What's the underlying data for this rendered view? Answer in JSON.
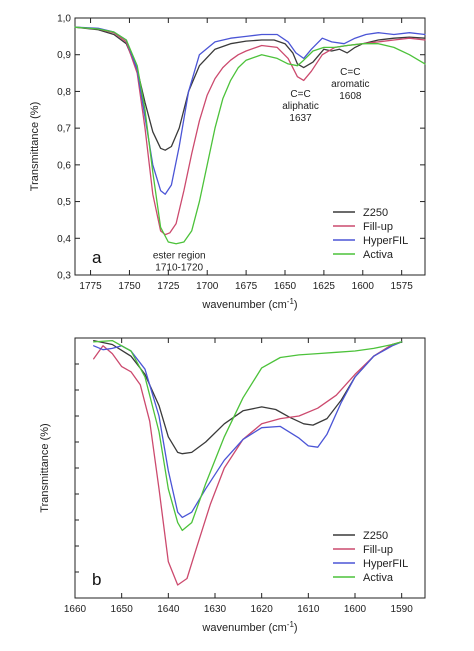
{
  "chart_data": [
    {
      "panel_label": "a",
      "type": "line",
      "xlabel_main": "wavenumber (cm",
      "xlabel_sup": "-1",
      "xlabel_end": ")",
      "ylabel": "Transmittance (%)",
      "xlim": [
        1785,
        1560
      ],
      "ylim": [
        0.3,
        1.0
      ],
      "x_ticks": [
        1775,
        1750,
        1725,
        1700,
        1675,
        1650,
        1625,
        1600,
        1575
      ],
      "y_ticks": [
        0.3,
        0.4,
        0.5,
        0.6,
        0.7,
        0.8,
        0.9,
        1.0
      ],
      "y_tick_labels": [
        "0,3",
        "0,4",
        "0,5",
        "0,6",
        "0,7",
        "0,8",
        "0,9",
        "1,0"
      ],
      "legend_position": "bottom-right",
      "annotations": [
        {
          "lines": [
            "ester region",
            "1710-1720"
          ],
          "x": 1718,
          "y": 0.345
        },
        {
          "lines": [
            "C=C",
            "aliphatic",
            "1637"
          ],
          "x": 1640,
          "y": 0.785
        },
        {
          "lines": [
            "C=C",
            "aromatic",
            "1608"
          ],
          "x": 1608,
          "y": 0.845
        }
      ],
      "series": [
        {
          "name": "Z250",
          "color": "#3a3a3a",
          "x": [
            1785,
            1770,
            1760,
            1752,
            1745,
            1740,
            1735,
            1730,
            1727,
            1723,
            1718,
            1712,
            1705,
            1695,
            1685,
            1675,
            1665,
            1657,
            1650,
            1645,
            1642,
            1638,
            1632,
            1625,
            1620,
            1615,
            1610,
            1605,
            1600,
            1590,
            1580,
            1570,
            1560
          ],
          "y": [
            0.975,
            0.968,
            0.955,
            0.93,
            0.86,
            0.77,
            0.69,
            0.645,
            0.64,
            0.65,
            0.7,
            0.8,
            0.87,
            0.915,
            0.93,
            0.937,
            0.94,
            0.94,
            0.93,
            0.905,
            0.875,
            0.865,
            0.88,
            0.915,
            0.91,
            0.915,
            0.905,
            0.92,
            0.93,
            0.94,
            0.945,
            0.948,
            0.945
          ]
        },
        {
          "name": "Fill-up",
          "color": "#cc4a6e",
          "x": [
            1785,
            1770,
            1760,
            1752,
            1745,
            1740,
            1735,
            1730,
            1727,
            1724,
            1720,
            1715,
            1710,
            1705,
            1700,
            1695,
            1690,
            1685,
            1680,
            1675,
            1665,
            1655,
            1648,
            1642,
            1638,
            1633,
            1626,
            1618,
            1610,
            1600,
            1590,
            1580,
            1570,
            1560
          ],
          "y": [
            0.975,
            0.97,
            0.96,
            0.935,
            0.85,
            0.7,
            0.52,
            0.42,
            0.41,
            0.415,
            0.44,
            0.53,
            0.63,
            0.72,
            0.79,
            0.835,
            0.865,
            0.885,
            0.9,
            0.91,
            0.925,
            0.92,
            0.89,
            0.84,
            0.83,
            0.855,
            0.9,
            0.92,
            0.925,
            0.93,
            0.935,
            0.94,
            0.945,
            0.94
          ]
        },
        {
          "name": "HyperFIL",
          "color": "#4b55d6",
          "x": [
            1785,
            1770,
            1760,
            1752,
            1745,
            1740,
            1735,
            1730,
            1727,
            1723,
            1718,
            1712,
            1705,
            1695,
            1685,
            1675,
            1665,
            1655,
            1648,
            1643,
            1638,
            1633,
            1626,
            1620,
            1612,
            1605,
            1598,
            1590,
            1580,
            1570,
            1560
          ],
          "y": [
            0.975,
            0.972,
            0.962,
            0.94,
            0.86,
            0.73,
            0.6,
            0.53,
            0.52,
            0.545,
            0.65,
            0.8,
            0.9,
            0.935,
            0.945,
            0.95,
            0.955,
            0.955,
            0.935,
            0.905,
            0.89,
            0.915,
            0.945,
            0.935,
            0.93,
            0.945,
            0.955,
            0.96,
            0.955,
            0.96,
            0.955
          ]
        },
        {
          "name": "Activa",
          "color": "#4cc23a",
          "x": [
            1785,
            1770,
            1760,
            1752,
            1745,
            1740,
            1735,
            1730,
            1725,
            1720,
            1715,
            1710,
            1705,
            1700,
            1695,
            1690,
            1685,
            1680,
            1675,
            1665,
            1655,
            1648,
            1642,
            1638,
            1632,
            1625,
            1618,
            1610,
            1600,
            1590,
            1580,
            1570,
            1560
          ],
          "y": [
            0.975,
            0.97,
            0.962,
            0.94,
            0.87,
            0.75,
            0.58,
            0.43,
            0.39,
            0.385,
            0.39,
            0.42,
            0.5,
            0.6,
            0.7,
            0.78,
            0.83,
            0.865,
            0.885,
            0.9,
            0.89,
            0.875,
            0.87,
            0.885,
            0.91,
            0.92,
            0.92,
            0.925,
            0.93,
            0.93,
            0.92,
            0.9,
            0.875
          ]
        }
      ]
    },
    {
      "panel_label": "b",
      "type": "line",
      "xlabel_main": "wavenumber (cm",
      "xlabel_sup": "-1",
      "xlabel_end": ")",
      "ylabel": "Transmittance (%)",
      "xlim": [
        1660,
        1585
      ],
      "ylim": [
        0,
        1
      ],
      "x_ticks": [
        1660,
        1650,
        1640,
        1630,
        1620,
        1610,
        1600,
        1590
      ],
      "legend_position": "bottom-right",
      "series": [
        {
          "name": "Z250",
          "color": "#3a3a3a",
          "x": [
            1656,
            1652,
            1648,
            1645,
            1642,
            1640,
            1638,
            1637,
            1635,
            1632,
            1628,
            1624,
            1620,
            1617,
            1614,
            1611,
            1609,
            1606,
            1603,
            1600,
            1596,
            1592,
            1590
          ],
          "y": [
            0.99,
            0.975,
            0.93,
            0.86,
            0.74,
            0.62,
            0.56,
            0.555,
            0.56,
            0.6,
            0.67,
            0.72,
            0.735,
            0.725,
            0.695,
            0.67,
            0.665,
            0.69,
            0.76,
            0.85,
            0.93,
            0.975,
            0.985
          ]
        },
        {
          "name": "Fill-up",
          "color": "#cc4a6e",
          "x": [
            1656,
            1654,
            1652,
            1650,
            1648,
            1646,
            1644,
            1642,
            1640,
            1638,
            1636,
            1634,
            1631,
            1628,
            1624,
            1620,
            1616,
            1612,
            1608,
            1604,
            1600,
            1596,
            1592,
            1590
          ],
          "y": [
            0.92,
            0.97,
            0.94,
            0.89,
            0.87,
            0.82,
            0.68,
            0.42,
            0.14,
            0.05,
            0.075,
            0.19,
            0.36,
            0.5,
            0.61,
            0.67,
            0.69,
            0.7,
            0.73,
            0.78,
            0.86,
            0.93,
            0.975,
            0.985
          ]
        },
        {
          "name": "HyperFIL",
          "color": "#4b55d6",
          "x": [
            1656,
            1654,
            1652,
            1650,
            1648,
            1645,
            1642,
            1640,
            1638,
            1637,
            1635,
            1632,
            1628,
            1624,
            1620,
            1616,
            1612,
            1610,
            1608,
            1606,
            1603,
            1600,
            1596,
            1592,
            1590
          ],
          "y": [
            0.97,
            0.955,
            0.96,
            0.97,
            0.95,
            0.88,
            0.7,
            0.49,
            0.33,
            0.31,
            0.33,
            0.42,
            0.53,
            0.61,
            0.655,
            0.66,
            0.615,
            0.585,
            0.58,
            0.63,
            0.75,
            0.85,
            0.93,
            0.97,
            0.985
          ]
        },
        {
          "name": "Activa",
          "color": "#4cc23a",
          "x": [
            1656,
            1652,
            1648,
            1645,
            1642,
            1640,
            1638,
            1637,
            1635,
            1632,
            1628,
            1624,
            1620,
            1616,
            1612,
            1608,
            1604,
            1600,
            1596,
            1592,
            1590
          ],
          "y": [
            0.985,
            0.99,
            0.95,
            0.85,
            0.64,
            0.42,
            0.29,
            0.26,
            0.29,
            0.44,
            0.62,
            0.77,
            0.885,
            0.925,
            0.935,
            0.94,
            0.945,
            0.95,
            0.96,
            0.975,
            0.985
          ]
        }
      ]
    }
  ]
}
